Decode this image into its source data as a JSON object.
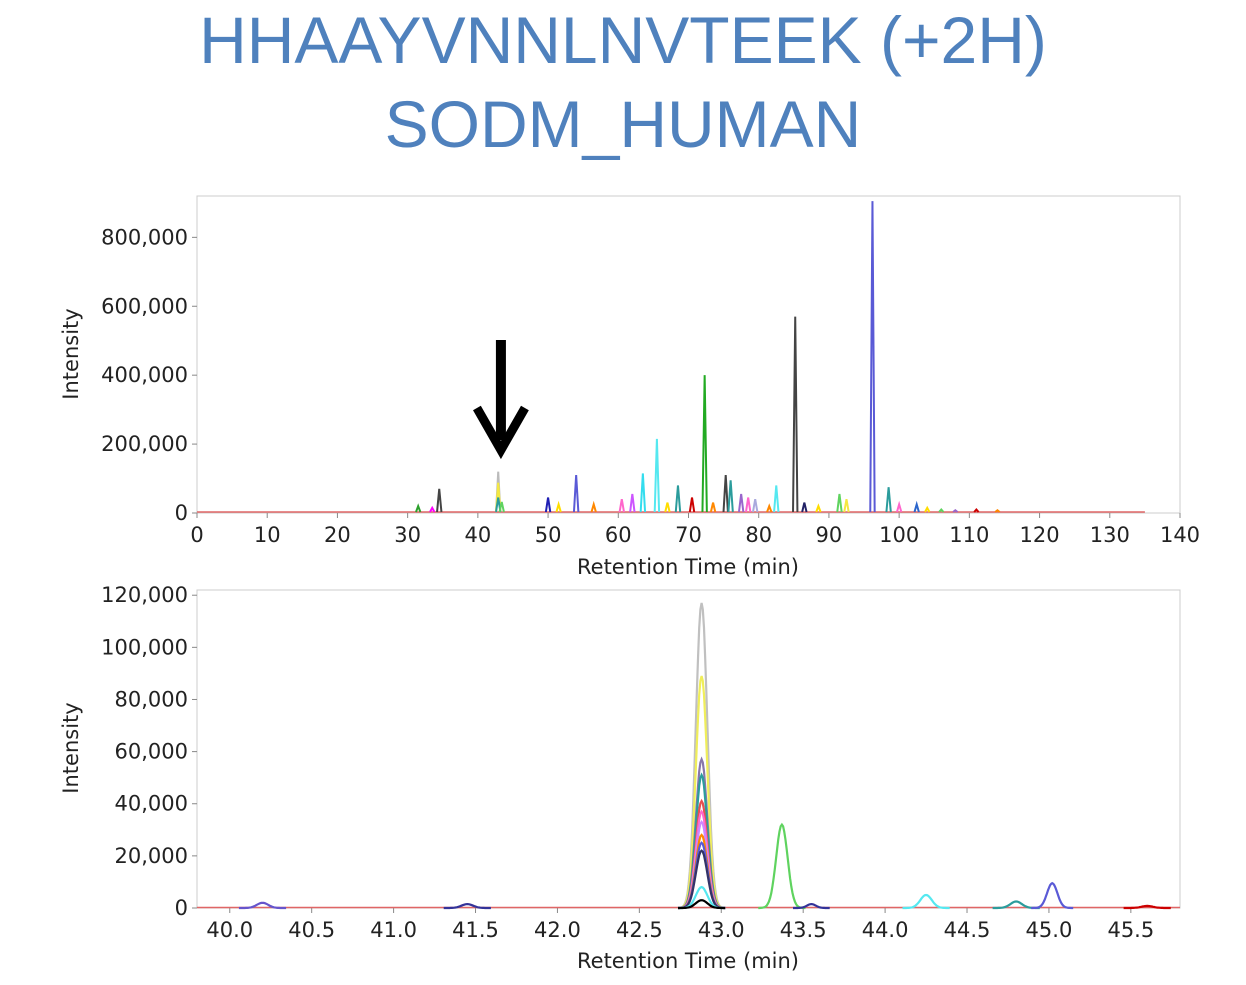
{
  "title": {
    "line1": "HHAAYVNNLNVTEEK (+2H)",
    "line2": "SODM_HUMAN"
  },
  "colors": {
    "title": "#4f81bd",
    "baseline": "#e06666"
  },
  "chart_data": [
    {
      "type": "line",
      "name": "full-chromatogram",
      "xlabel": "Retention Time (min)",
      "ylabel": "Intensity",
      "xlim": [
        0,
        140
      ],
      "ylim": [
        0,
        920000
      ],
      "xticks": [
        0,
        10,
        20,
        30,
        40,
        50,
        60,
        70,
        80,
        90,
        100,
        110,
        120,
        130,
        140
      ],
      "yticks": [
        0,
        200000,
        400000,
        600000,
        800000
      ],
      "xtick_labels": [
        "0",
        "10",
        "20",
        "30",
        "40",
        "50",
        "60",
        "70",
        "80",
        "90",
        "100",
        "110",
        "120",
        "130",
        "140"
      ],
      "ytick_labels": [
        "0",
        "200,000",
        "400,000",
        "600,000",
        "800,000"
      ],
      "annotation": {
        "type": "arrow",
        "x": 43,
        "direction": "down"
      },
      "peaks": [
        {
          "x": 34.5,
          "y": 70000,
          "color": "#444444"
        },
        {
          "x": 31.5,
          "y": 20000,
          "color": "#2ca02c"
        },
        {
          "x": 33.5,
          "y": 15000,
          "color": "#ff00ff"
        },
        {
          "x": 42.9,
          "y": 120000,
          "color": "#bbbbbb"
        },
        {
          "x": 42.9,
          "y": 88000,
          "color": "#f4e842"
        },
        {
          "x": 42.9,
          "y": 45000,
          "color": "#2b9c9c"
        },
        {
          "x": 43.4,
          "y": 32000,
          "color": "#5fd35f"
        },
        {
          "x": 50.0,
          "y": 45000,
          "color": "#1f1fb4"
        },
        {
          "x": 51.5,
          "y": 25000,
          "color": "#ffdd00"
        },
        {
          "x": 54.0,
          "y": 110000,
          "color": "#5a5ad6"
        },
        {
          "x": 56.5,
          "y": 25000,
          "color": "#ff8800"
        },
        {
          "x": 60.5,
          "y": 40000,
          "color": "#ff66cc"
        },
        {
          "x": 62.0,
          "y": 55000,
          "color": "#cc55ff"
        },
        {
          "x": 63.5,
          "y": 115000,
          "color": "#33ddee"
        },
        {
          "x": 65.5,
          "y": 215000,
          "color": "#55e8f0"
        },
        {
          "x": 67.0,
          "y": 30000,
          "color": "#ffdd00"
        },
        {
          "x": 68.5,
          "y": 80000,
          "color": "#2b9c9c"
        },
        {
          "x": 70.5,
          "y": 45000,
          "color": "#cc0000"
        },
        {
          "x": 72.3,
          "y": 400000,
          "color": "#22aa22"
        },
        {
          "x": 73.5,
          "y": 30000,
          "color": "#ff8800"
        },
        {
          "x": 75.3,
          "y": 110000,
          "color": "#444444"
        },
        {
          "x": 76.0,
          "y": 95000,
          "color": "#2b9c9c"
        },
        {
          "x": 77.5,
          "y": 55000,
          "color": "#9966cc"
        },
        {
          "x": 78.5,
          "y": 45000,
          "color": "#ff66cc"
        },
        {
          "x": 79.5,
          "y": 40000,
          "color": "#aaaadd"
        },
        {
          "x": 81.5,
          "y": 20000,
          "color": "#ff8800"
        },
        {
          "x": 82.5,
          "y": 80000,
          "color": "#55e8f0"
        },
        {
          "x": 85.2,
          "y": 570000,
          "color": "#444444"
        },
        {
          "x": 86.5,
          "y": 30000,
          "color": "#222266"
        },
        {
          "x": 88.5,
          "y": 20000,
          "color": "#ffdd00"
        },
        {
          "x": 91.5,
          "y": 55000,
          "color": "#5fd35f"
        },
        {
          "x": 92.5,
          "y": 40000,
          "color": "#f4e842"
        },
        {
          "x": 96.2,
          "y": 905000,
          "color": "#5a5ad6"
        },
        {
          "x": 98.5,
          "y": 75000,
          "color": "#2b9c9c"
        },
        {
          "x": 100.0,
          "y": 25000,
          "color": "#ff66cc"
        },
        {
          "x": 102.5,
          "y": 25000,
          "color": "#2b66cc"
        },
        {
          "x": 104.0,
          "y": 15000,
          "color": "#ffdd00"
        },
        {
          "x": 106.0,
          "y": 10000,
          "color": "#5fd35f"
        },
        {
          "x": 108.0,
          "y": 8000,
          "color": "#9966cc"
        },
        {
          "x": 111.0,
          "y": 10000,
          "color": "#cc0000"
        },
        {
          "x": 114.0,
          "y": 8000,
          "color": "#ff8800"
        }
      ]
    },
    {
      "type": "line",
      "name": "zoomed-chromatogram",
      "xlabel": "Retention Time (min)",
      "ylabel": "Intensity",
      "xlim": [
        39.8,
        45.8
      ],
      "ylim": [
        0,
        122000
      ],
      "xticks": [
        40.0,
        40.5,
        41.0,
        41.5,
        42.0,
        42.5,
        43.0,
        43.5,
        44.0,
        44.5,
        45.0,
        45.5
      ],
      "yticks": [
        0,
        20000,
        40000,
        60000,
        80000,
        100000,
        120000
      ],
      "xtick_labels": [
        "40.0",
        "40.5",
        "41.0",
        "41.5",
        "42.0",
        "42.5",
        "43.0",
        "43.5",
        "44.0",
        "44.5",
        "45.0",
        "45.5"
      ],
      "ytick_labels": [
        "0",
        "20,000",
        "40,000",
        "60,000",
        "80,000",
        "100,000",
        "120,000"
      ],
      "peaks": [
        {
          "x": 42.88,
          "y": 117000,
          "width": 0.09,
          "color": "#c0c0c0"
        },
        {
          "x": 42.88,
          "y": 89000,
          "width": 0.09,
          "color": "#f0ee5a"
        },
        {
          "x": 42.88,
          "y": 57000,
          "width": 0.09,
          "color": "#8877aa"
        },
        {
          "x": 42.88,
          "y": 51000,
          "width": 0.09,
          "color": "#2b9c9c"
        },
        {
          "x": 42.88,
          "y": 41000,
          "width": 0.09,
          "color": "#e85050"
        },
        {
          "x": 42.88,
          "y": 37000,
          "width": 0.09,
          "color": "#ff66cc"
        },
        {
          "x": 42.88,
          "y": 33000,
          "width": 0.09,
          "color": "#cc88ff"
        },
        {
          "x": 42.88,
          "y": 28000,
          "width": 0.09,
          "color": "#ff8800"
        },
        {
          "x": 42.88,
          "y": 25000,
          "width": 0.09,
          "color": "#5a5ad6"
        },
        {
          "x": 42.88,
          "y": 22000,
          "width": 0.09,
          "color": "#333366"
        },
        {
          "x": 42.88,
          "y": 8000,
          "width": 0.09,
          "color": "#55e8f0"
        },
        {
          "x": 42.88,
          "y": 3000,
          "width": 0.09,
          "color": "#000000"
        },
        {
          "x": 43.37,
          "y": 32000,
          "width": 0.09,
          "color": "#5fd35f"
        },
        {
          "x": 40.2,
          "y": 2000,
          "width": 0.09,
          "color": "#6655cc"
        },
        {
          "x": 41.45,
          "y": 1500,
          "width": 0.09,
          "color": "#333399"
        },
        {
          "x": 43.55,
          "y": 1500,
          "width": 0.07,
          "color": "#333399"
        },
        {
          "x": 44.25,
          "y": 5000,
          "width": 0.09,
          "color": "#55e8f0"
        },
        {
          "x": 44.8,
          "y": 2500,
          "width": 0.09,
          "color": "#2b9c9c"
        },
        {
          "x": 45.02,
          "y": 9500,
          "width": 0.08,
          "color": "#5a5ad6"
        },
        {
          "x": 45.6,
          "y": 800,
          "width": 0.09,
          "color": "#cc0000"
        }
      ]
    }
  ]
}
